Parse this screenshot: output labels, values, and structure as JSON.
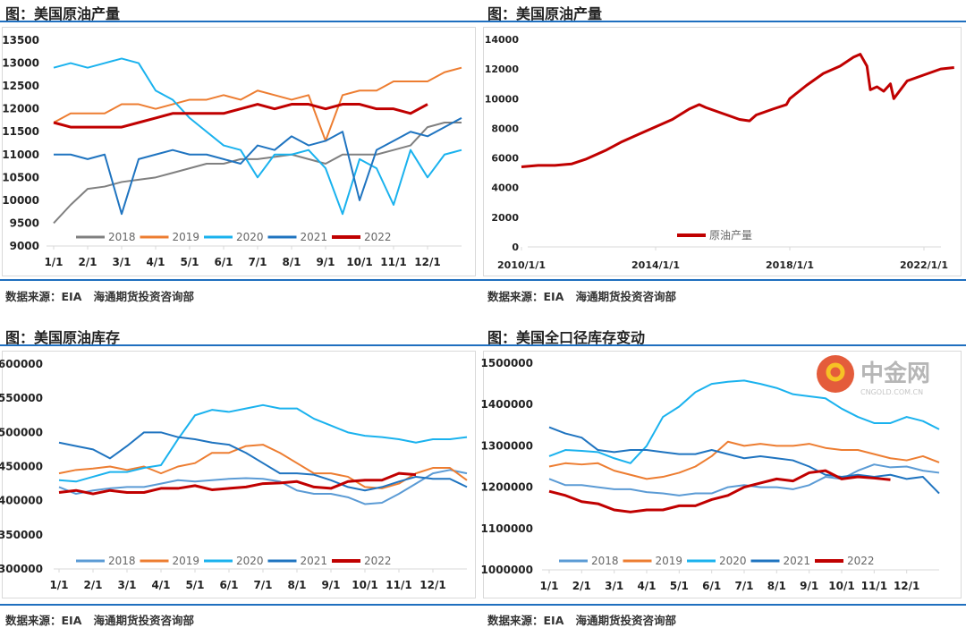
{
  "charts_meta": {
    "source_label": "数据来源：EIA",
    "org": "海通期货投资咨询部"
  },
  "watermark": {
    "logo_text": "中金网",
    "sub_text": "CNGOLD.COM.CN"
  },
  "colors": {
    "2018_prod": "#808080",
    "2019": "#ed7d31",
    "2020": "#1ab2ee",
    "2021": "#1f74c0",
    "2022": "#c00000",
    "2018_inv": "#5b9bd5",
    "rule": "#1f6fbf"
  },
  "chart_data": [
    {
      "type": "line",
      "title": "图：美国原油产量",
      "x_unit": "month-of-year (step 0.5)",
      "x_ticks": [
        "1/1",
        "2/1",
        "3/1",
        "4/1",
        "5/1",
        "6/1",
        "7/1",
        "8/1",
        "9/1",
        "10/1",
        "11/1",
        "12/1"
      ],
      "ylim": [
        9000,
        13500
      ],
      "y_ticks": [
        "9000",
        "9500",
        "10000",
        "10500",
        "11000",
        "11500",
        "12000",
        "12500",
        "13000",
        "13500"
      ],
      "legend": "bottom-inside",
      "series": [
        {
          "name": "2018",
          "values": [
            9500,
            9900,
            10250,
            10300,
            10400,
            10450,
            10500,
            10600,
            10700,
            10800,
            10800,
            10900,
            10900,
            10950,
            11000,
            10900,
            10800,
            11000,
            11000,
            11000,
            11100,
            11200,
            11600,
            11700,
            11700
          ]
        },
        {
          "name": "2019",
          "values": [
            11700,
            11900,
            11900,
            11900,
            12100,
            12100,
            12000,
            12100,
            12200,
            12200,
            12300,
            12200,
            12400,
            12300,
            12200,
            12300,
            11300,
            12300,
            12400,
            12400,
            12600,
            12600,
            12600,
            12800,
            12900
          ]
        },
        {
          "name": "2020",
          "values": [
            12900,
            13000,
            12900,
            13000,
            13100,
            13000,
            12400,
            12200,
            11800,
            11500,
            11200,
            11100,
            10500,
            11000,
            11000,
            11100,
            10700,
            9700,
            10900,
            10700,
            9900,
            11100,
            10500,
            11000,
            11100
          ]
        },
        {
          "name": "2021",
          "values": [
            11000,
            11000,
            10900,
            11000,
            9700,
            10900,
            11000,
            11100,
            11000,
            11000,
            10900,
            10800,
            11200,
            11100,
            11400,
            11200,
            11300,
            11500,
            10000,
            11100,
            11300,
            11500,
            11400,
            11600,
            11800
          ]
        },
        {
          "name": "2022",
          "values": [
            11700,
            11600,
            11600,
            11600,
            11600,
            11700,
            11800,
            11900,
            11900,
            11900,
            11900,
            12000,
            12100,
            12000,
            12100,
            12100,
            12000,
            12100,
            12100,
            12000,
            12000,
            11900,
            12100
          ]
        }
      ]
    },
    {
      "type": "line",
      "title": "图：美国原油产量",
      "x_ticks": [
        "2010/1/1",
        "2014/1/1",
        "2018/1/1",
        "2022/1/1"
      ],
      "x_range": [
        2010,
        2022.9
      ],
      "ylim": [
        0,
        14000
      ],
      "y_ticks": [
        "0",
        "2000",
        "4000",
        "6000",
        "8000",
        "10000",
        "12000",
        "14000"
      ],
      "legend": "bottom-center",
      "series": [
        {
          "name": "原油产量",
          "x": [
            2010,
            2010.5,
            2011,
            2011.5,
            2011.9,
            2012,
            2012.5,
            2013,
            2013.5,
            2014,
            2014.5,
            2015,
            2015.3,
            2015.5,
            2016,
            2016.5,
            2016.8,
            2017,
            2017.5,
            2017.9,
            2018,
            2018.5,
            2019,
            2019.5,
            2019.9,
            2020.1,
            2020.3,
            2020.4,
            2020.6,
            2020.8,
            2021,
            2021.1,
            2021.5,
            2022,
            2022.5,
            2022.9
          ],
          "values": [
            5400,
            5500,
            5500,
            5600,
            5900,
            6000,
            6500,
            7100,
            7600,
            8100,
            8600,
            9300,
            9600,
            9400,
            9000,
            8600,
            8500,
            8900,
            9300,
            9600,
            10000,
            10900,
            11700,
            12200,
            12800,
            13000,
            12200,
            10600,
            10800,
            10500,
            11000,
            10000,
            11200,
            11600,
            12000,
            12100
          ]
        }
      ]
    },
    {
      "type": "line",
      "title": "图：美国原油库存",
      "x_ticks": [
        "1/1",
        "2/1",
        "3/1",
        "4/1",
        "5/1",
        "6/1",
        "7/1",
        "8/1",
        "9/1",
        "10/1",
        "11/1",
        "12/1"
      ],
      "ylim": [
        300000,
        600000
      ],
      "y_ticks": [
        "300000",
        "350000",
        "400000",
        "450000",
        "500000",
        "550000",
        "600000"
      ],
      "legend": "bottom-inside",
      "series": [
        {
          "name": "2018",
          "values": [
            420000,
            410000,
            415000,
            418000,
            420000,
            420000,
            425000,
            430000,
            428000,
            430000,
            432000,
            433000,
            432000,
            428000,
            415000,
            410000,
            410000,
            405000,
            395000,
            397000,
            410000,
            425000,
            440000,
            445000,
            440000
          ]
        },
        {
          "name": "2019",
          "values": [
            440000,
            445000,
            447000,
            450000,
            445000,
            450000,
            440000,
            450000,
            455000,
            470000,
            470000,
            480000,
            482000,
            470000,
            455000,
            440000,
            440000,
            435000,
            420000,
            418000,
            425000,
            440000,
            448000,
            448000,
            430000
          ]
        },
        {
          "name": "2020",
          "values": [
            430000,
            428000,
            435000,
            442000,
            442000,
            448000,
            452000,
            490000,
            525000,
            533000,
            530000,
            535000,
            540000,
            535000,
            535000,
            520000,
            510000,
            500000,
            495000,
            493000,
            490000,
            485000,
            490000,
            490000,
            493000
          ]
        },
        {
          "name": "2021",
          "values": [
            485000,
            480000,
            475000,
            462000,
            480000,
            500000,
            500000,
            493000,
            490000,
            485000,
            482000,
            470000,
            455000,
            440000,
            440000,
            438000,
            430000,
            420000,
            415000,
            420000,
            428000,
            435000,
            432000,
            432000,
            420000
          ]
        },
        {
          "name": "2022",
          "values": [
            412000,
            415000,
            410000,
            415000,
            412000,
            412000,
            418000,
            418000,
            422000,
            416000,
            418000,
            420000,
            425000,
            426000,
            428000,
            420000,
            418000,
            428000,
            430000,
            430000,
            440000,
            438000
          ]
        }
      ]
    },
    {
      "type": "line",
      "title": "图：美国全口径库存变动",
      "x_ticks": [
        "1/1",
        "2/1",
        "3/1",
        "4/1",
        "5/1",
        "6/1",
        "7/1",
        "8/1",
        "9/1",
        "10/1",
        "11/1",
        "12/1"
      ],
      "ylim": [
        1000000,
        1500000
      ],
      "y_ticks": [
        "1000000",
        "1100000",
        "1200000",
        "1300000",
        "1400000",
        "1500000"
      ],
      "legend": "bottom-inside",
      "series": [
        {
          "name": "2018",
          "values": [
            1220000,
            1205000,
            1205000,
            1200000,
            1195000,
            1195000,
            1188000,
            1185000,
            1180000,
            1185000,
            1185000,
            1200000,
            1205000,
            1200000,
            1200000,
            1195000,
            1205000,
            1225000,
            1220000,
            1240000,
            1255000,
            1248000,
            1250000,
            1240000,
            1235000
          ]
        },
        {
          "name": "2019",
          "values": [
            1250000,
            1258000,
            1255000,
            1258000,
            1240000,
            1230000,
            1220000,
            1225000,
            1235000,
            1250000,
            1275000,
            1310000,
            1300000,
            1305000,
            1300000,
            1300000,
            1305000,
            1295000,
            1290000,
            1290000,
            1280000,
            1270000,
            1265000,
            1275000,
            1260000
          ]
        },
        {
          "name": "2020",
          "values": [
            1275000,
            1290000,
            1288000,
            1285000,
            1270000,
            1258000,
            1300000,
            1370000,
            1395000,
            1430000,
            1450000,
            1455000,
            1458000,
            1450000,
            1440000,
            1425000,
            1420000,
            1415000,
            1390000,
            1370000,
            1355000,
            1355000,
            1370000,
            1360000,
            1340000
          ]
        },
        {
          "name": "2021",
          "values": [
            1345000,
            1330000,
            1320000,
            1290000,
            1285000,
            1290000,
            1290000,
            1285000,
            1280000,
            1280000,
            1290000,
            1280000,
            1270000,
            1275000,
            1270000,
            1265000,
            1250000,
            1230000,
            1225000,
            1230000,
            1225000,
            1230000,
            1220000,
            1225000,
            1185000
          ]
        },
        {
          "name": "2022",
          "values": [
            1190000,
            1180000,
            1165000,
            1160000,
            1145000,
            1140000,
            1145000,
            1145000,
            1155000,
            1155000,
            1170000,
            1180000,
            1200000,
            1210000,
            1220000,
            1215000,
            1235000,
            1240000,
            1220000,
            1225000,
            1222000,
            1218000
          ]
        }
      ]
    }
  ]
}
